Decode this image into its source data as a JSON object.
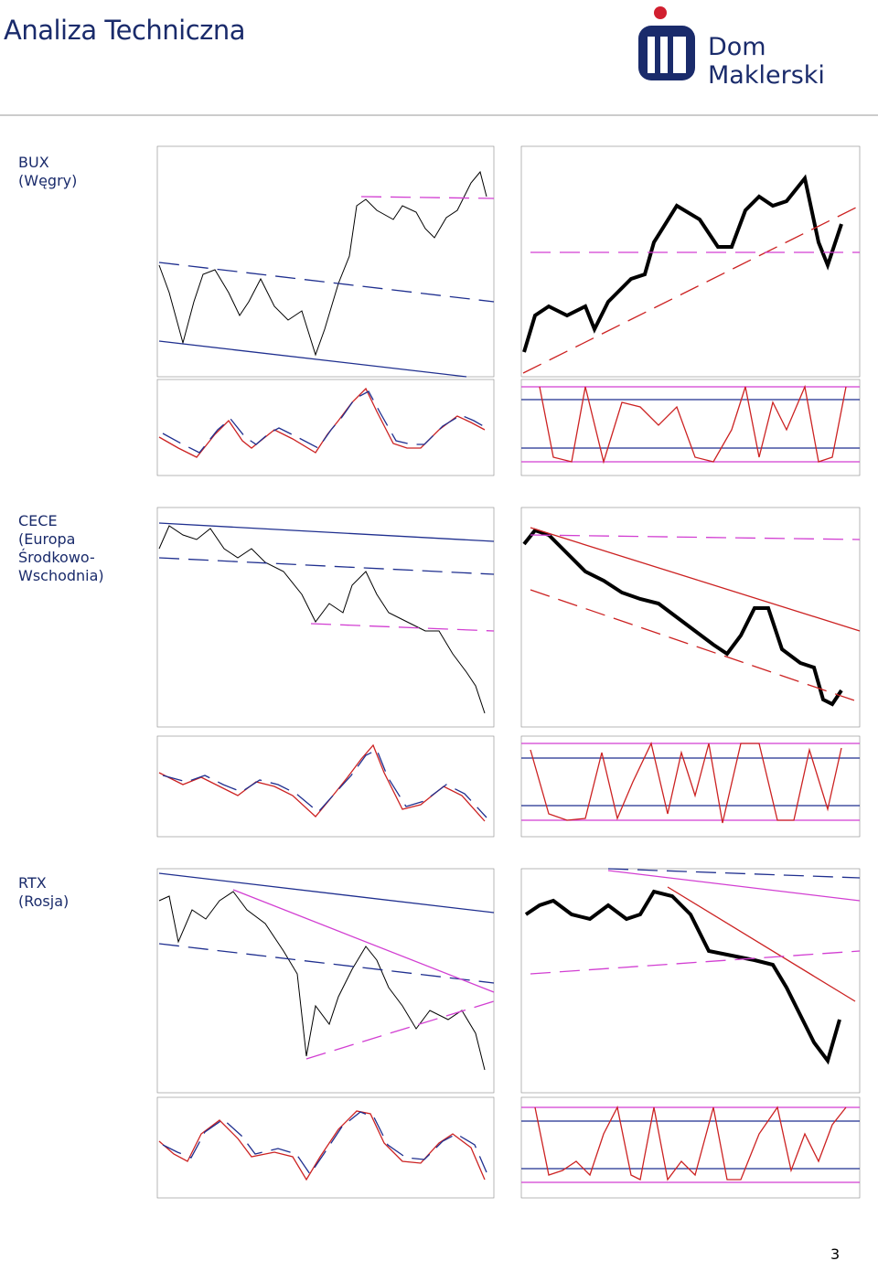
{
  "header": {
    "title": "Analiza Techniczna",
    "brand": "Dom Maklerski"
  },
  "sections": [
    {
      "name": "BUX",
      "region": "(Węgry)"
    },
    {
      "name": "CECE",
      "region": "(Europa Środkowo-Wschodnia)"
    },
    {
      "name": "RTX",
      "region": "(Rosja)"
    }
  ],
  "footer": {
    "page_number": "3"
  }
}
